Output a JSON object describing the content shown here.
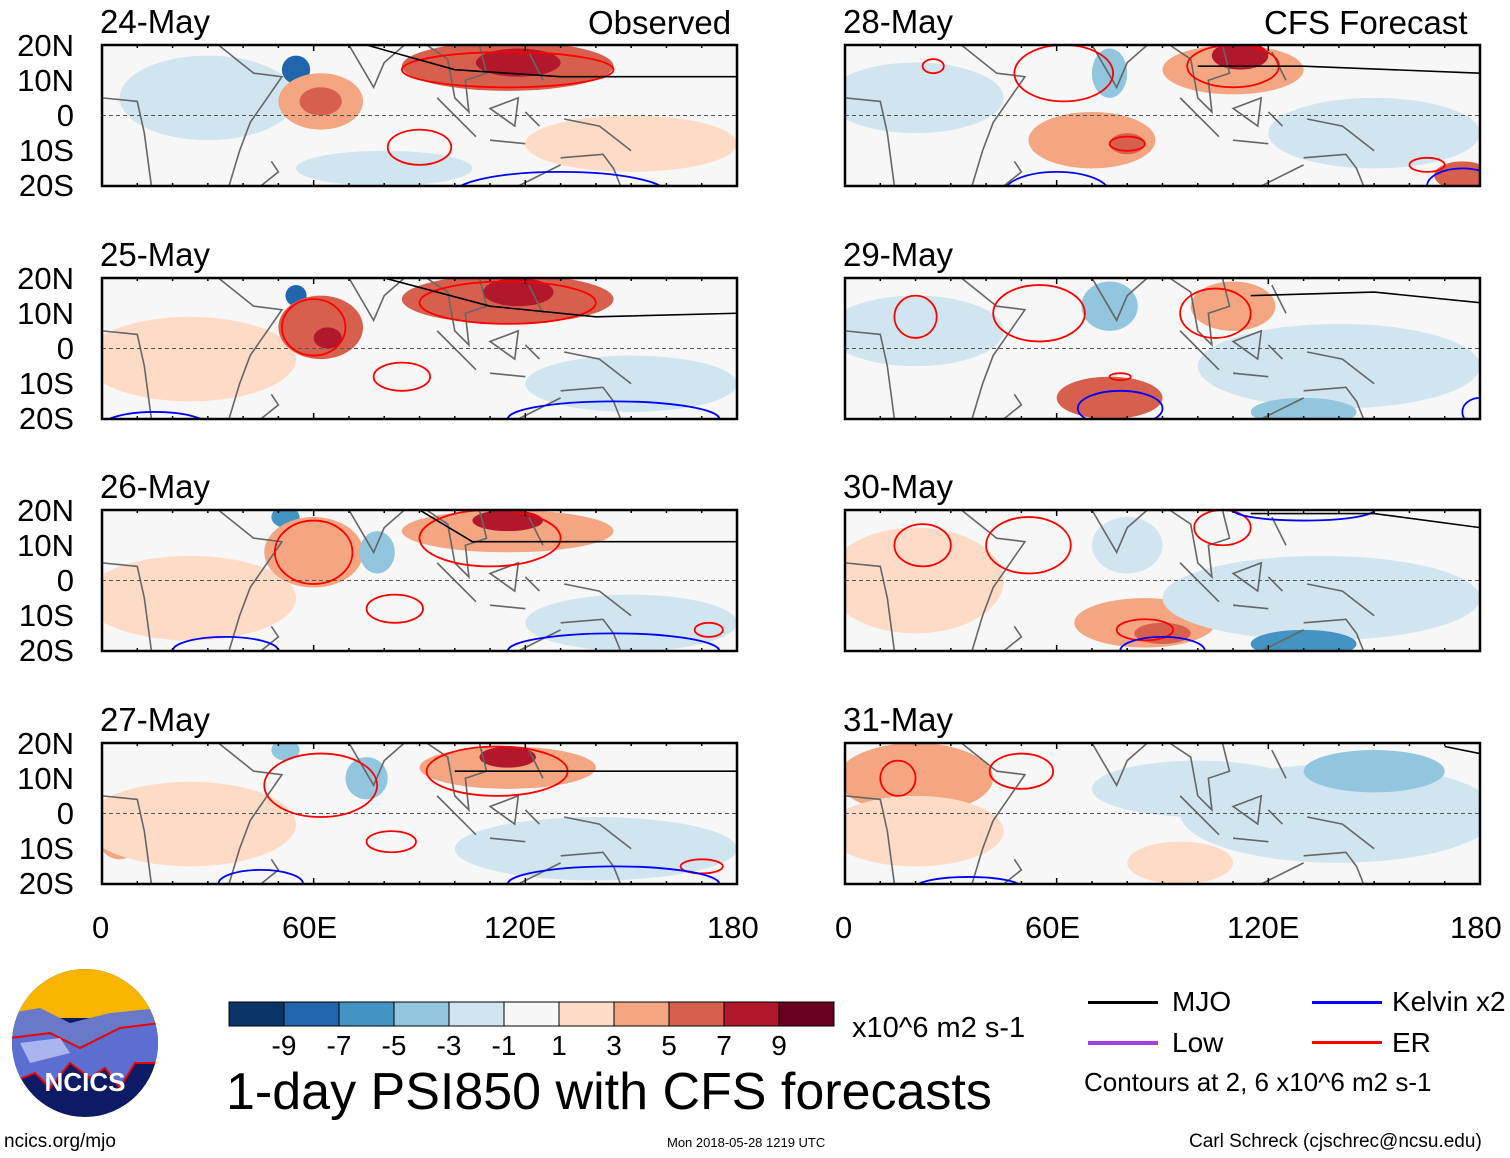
{
  "figure_title": "1-day PSI850 with CFS forecasts",
  "left_header": "Observed",
  "right_header": "CFS Forecast",
  "lat_labels": [
    "20N",
    "10N",
    "0",
    "10S",
    "20S"
  ],
  "lon_labels": [
    "0",
    "60E",
    "120E",
    "180"
  ],
  "colorbar": {
    "ticks": [
      "-9",
      "-7",
      "-5",
      "-3",
      "-1",
      "1",
      "3",
      "5",
      "7",
      "9"
    ],
    "units": "x10^6 m2 s-1",
    "colors": [
      "#0a3366",
      "#2166ac",
      "#4393c3",
      "#92c5de",
      "#d1e5f0",
      "#f7f7f7",
      "#fddbc7",
      "#f4a582",
      "#d6604d",
      "#b2182b",
      "#67001f"
    ]
  },
  "legend": {
    "mjo": "MJO",
    "kelvin": "Kelvin x2",
    "low": "Low",
    "er": "ER",
    "note": "Contours at 2, 6 x10^6 m2 s-1",
    "colors": {
      "mjo": "#000000",
      "kelvin": "#0000ff",
      "low": "#a040e0",
      "er": "#ff0000"
    }
  },
  "footer": {
    "left": "ncics.org/mjo",
    "center": "Mon 2018-05-28 1219 UTC",
    "right": "Carl Schreck (cjschrec@ncsu.edu)",
    "logo_text": "NCICS"
  },
  "chart_data": {
    "type": "heatmap",
    "variable": "PSI850 anomaly",
    "lon_range": [
      0,
      180
    ],
    "lat_range": [
      -20,
      20
    ],
    "panels": [
      {
        "date": "24-May",
        "source": "Observed",
        "blobs": [
          [
            30,
            5,
            25,
            12,
            -2
          ],
          [
            55,
            13,
            4,
            4,
            -9
          ],
          [
            62,
            4,
            12,
            8,
            4
          ],
          [
            62,
            4,
            6,
            4,
            6
          ],
          [
            115,
            14,
            30,
            7,
            5
          ],
          [
            118,
            15,
            12,
            4,
            8
          ],
          [
            150,
            -8,
            30,
            8,
            2
          ],
          [
            80,
            -15,
            25,
            5,
            -2
          ]
        ],
        "er": [
          [
            115,
            13,
            30,
            5
          ],
          [
            90,
            -9,
            9,
            5
          ]
        ],
        "kelvin": [
          [
            130,
            -22,
            30,
            6
          ]
        ],
        "mjo": [
          [
            75,
            20
          ],
          [
            100,
            13
          ],
          [
            130,
            11
          ],
          [
            180,
            11
          ]
        ]
      },
      {
        "date": "25-May",
        "source": "Observed",
        "blobs": [
          [
            25,
            -3,
            30,
            12,
            2
          ],
          [
            55,
            15,
            3,
            3,
            -8
          ],
          [
            62,
            6,
            12,
            9,
            5
          ],
          [
            64,
            3,
            4,
            3,
            7
          ],
          [
            115,
            14,
            30,
            7,
            5
          ],
          [
            118,
            16,
            10,
            4,
            8
          ],
          [
            150,
            -10,
            30,
            8,
            -2
          ]
        ],
        "er": [
          [
            60,
            6,
            9,
            8
          ],
          [
            115,
            13,
            25,
            6
          ],
          [
            85,
            -8,
            8,
            4
          ]
        ],
        "kelvin": [
          [
            145,
            -20,
            30,
            5
          ],
          [
            15,
            -22,
            15,
            4
          ]
        ],
        "mjo": [
          [
            80,
            20
          ],
          [
            110,
            12
          ],
          [
            140,
            9
          ],
          [
            180,
            10
          ]
        ]
      },
      {
        "date": "26-May",
        "source": "Observed",
        "blobs": [
          [
            25,
            -5,
            30,
            12,
            2
          ],
          [
            52,
            18,
            4,
            3,
            -6
          ],
          [
            60,
            8,
            14,
            10,
            3
          ],
          [
            78,
            8,
            5,
            6,
            -5
          ],
          [
            115,
            14,
            30,
            6,
            4
          ],
          [
            115,
            17,
            10,
            3,
            8
          ],
          [
            150,
            -12,
            30,
            8,
            -2
          ]
        ],
        "er": [
          [
            60,
            8,
            11,
            9
          ],
          [
            110,
            12,
            20,
            8
          ],
          [
            83,
            -8,
            8,
            4
          ],
          [
            172,
            -14,
            4,
            2
          ]
        ],
        "kelvin": [
          [
            145,
            -20,
            30,
            5
          ],
          [
            35,
            -20,
            15,
            4
          ]
        ],
        "mjo": [
          [
            90,
            20
          ],
          [
            105,
            11
          ],
          [
            140,
            11
          ],
          [
            180,
            11
          ]
        ]
      },
      {
        "date": "27-May",
        "source": "Observed",
        "blobs": [
          [
            5,
            -7,
            6,
            6,
            4
          ],
          [
            25,
            -3,
            30,
            12,
            2
          ],
          [
            52,
            18,
            4,
            3,
            -5
          ],
          [
            75,
            10,
            6,
            6,
            -5
          ],
          [
            115,
            13,
            25,
            6,
            4
          ],
          [
            115,
            16,
            8,
            3,
            7
          ],
          [
            140,
            -10,
            40,
            9,
            -2
          ]
        ],
        "er": [
          [
            62,
            8,
            16,
            9
          ],
          [
            112,
            12,
            20,
            7
          ],
          [
            82,
            -8,
            7,
            3
          ],
          [
            170,
            -15,
            6,
            2
          ]
        ],
        "kelvin": [
          [
            145,
            -20,
            30,
            5
          ],
          [
            45,
            -20,
            12,
            4
          ]
        ],
        "mjo": [
          [
            100,
            12
          ],
          [
            140,
            12
          ],
          [
            180,
            12
          ]
        ]
      },
      {
        "date": "28-May",
        "source": "CFS Forecast",
        "blobs": [
          [
            20,
            5,
            25,
            10,
            -2
          ],
          [
            75,
            12,
            5,
            7,
            -5
          ],
          [
            70,
            -7,
            18,
            8,
            3
          ],
          [
            80,
            -8,
            5,
            3,
            5
          ],
          [
            110,
            13,
            20,
            7,
            4
          ],
          [
            112,
            17,
            8,
            4,
            7
          ],
          [
            150,
            -5,
            30,
            10,
            -2
          ],
          [
            175,
            -17,
            8,
            4,
            6
          ]
        ],
        "er": [
          [
            25,
            14,
            3,
            2
          ],
          [
            62,
            12,
            14,
            8
          ],
          [
            110,
            14,
            13,
            6
          ],
          [
            80,
            -8,
            5,
            2
          ],
          [
            165,
            -14,
            5,
            2
          ]
        ],
        "kelvin": [
          [
            60,
            -22,
            15,
            6
          ],
          [
            175,
            -20,
            10,
            5
          ]
        ],
        "mjo": [
          [
            100,
            14
          ],
          [
            130,
            14
          ],
          [
            180,
            12
          ]
        ]
      },
      {
        "date": "29-May",
        "source": "CFS Forecast",
        "blobs": [
          [
            20,
            5,
            25,
            10,
            -2
          ],
          [
            75,
            12,
            8,
            7,
            -4
          ],
          [
            75,
            -14,
            15,
            6,
            5
          ],
          [
            110,
            12,
            12,
            7,
            3
          ],
          [
            140,
            -5,
            40,
            12,
            -3
          ],
          [
            130,
            -18,
            15,
            4,
            -5
          ]
        ],
        "er": [
          [
            20,
            9,
            6,
            6
          ],
          [
            55,
            10,
            13,
            8
          ],
          [
            105,
            10,
            10,
            7
          ],
          [
            78,
            -8,
            3,
            1
          ]
        ],
        "kelvin": [
          [
            78,
            -17,
            12,
            5
          ],
          [
            180,
            -18,
            5,
            4
          ]
        ],
        "mjo": [
          [
            115,
            15
          ],
          [
            150,
            16
          ],
          [
            180,
            13
          ]
        ]
      },
      {
        "date": "30-May",
        "source": "CFS Forecast",
        "blobs": [
          [
            20,
            0,
            25,
            15,
            2
          ],
          [
            85,
            -12,
            20,
            7,
            4
          ],
          [
            90,
            -15,
            8,
            3,
            6
          ],
          [
            135,
            -5,
            45,
            12,
            -3
          ],
          [
            130,
            -18,
            15,
            4,
            -6
          ],
          [
            80,
            10,
            10,
            8,
            -2
          ]
        ],
        "er": [
          [
            22,
            10,
            8,
            6
          ],
          [
            52,
            10,
            12,
            8
          ],
          [
            107,
            15,
            8,
            5
          ],
          [
            85,
            -14,
            8,
            3
          ]
        ],
        "kelvin": [
          [
            90,
            -20,
            12,
            4
          ],
          [
            130,
            20,
            20,
            3
          ]
        ],
        "mjo": [
          [
            115,
            19
          ],
          [
            150,
            19
          ],
          [
            180,
            15
          ]
        ]
      },
      {
        "date": "31-May",
        "source": "CFS Forecast",
        "blobs": [
          [
            20,
            10,
            22,
            10,
            3
          ],
          [
            20,
            -5,
            25,
            10,
            2
          ],
          [
            95,
            -14,
            15,
            6,
            2
          ],
          [
            140,
            0,
            45,
            14,
            -3
          ],
          [
            100,
            7,
            30,
            8,
            -3
          ],
          [
            150,
            12,
            20,
            6,
            -4
          ]
        ],
        "er": [
          [
            15,
            10,
            5,
            5
          ],
          [
            50,
            12,
            9,
            5
          ]
        ],
        "kelvin": [
          [
            35,
            -21,
            15,
            3
          ]
        ],
        "mjo": [
          [
            170,
            19
          ],
          [
            180,
            17
          ]
        ]
      }
    ]
  }
}
